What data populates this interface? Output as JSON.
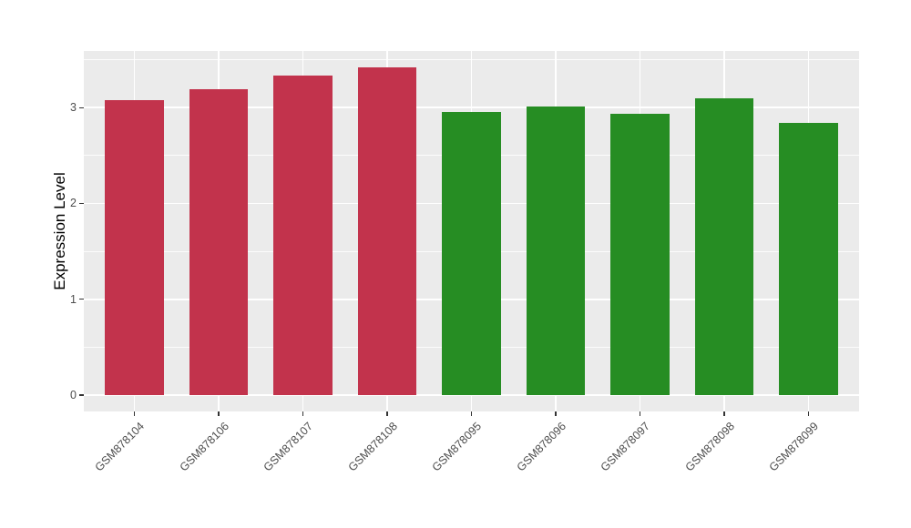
{
  "chart_data": {
    "type": "bar",
    "title": "",
    "xlabel": "",
    "ylabel": "Expression Level",
    "categories": [
      "GSM878104",
      "GSM878106",
      "GSM878107",
      "GSM878108",
      "GSM878095",
      "GSM878096",
      "GSM878097",
      "GSM878098",
      "GSM878099"
    ],
    "values": [
      3.08,
      3.19,
      3.33,
      3.42,
      2.95,
      3.01,
      2.94,
      3.1,
      2.84
    ],
    "bar_colors": [
      "#C2334C",
      "#C2334C",
      "#C2334C",
      "#C2334C",
      "#268D23",
      "#268D23",
      "#268D23",
      "#268D23",
      "#268D23"
    ],
    "yticks": [
      0,
      1,
      2,
      3
    ],
    "ytick_labels": [
      "0",
      "1",
      "2",
      "3"
    ],
    "ylim": [
      -0.171,
      3.591
    ],
    "bar_width_fraction": 0.7,
    "grid": "horizontal major+minor, vertical major at category centers",
    "legend_position": "none",
    "colors": {
      "group_left": "#C2334C",
      "group_right": "#268D23",
      "panel_background": "#EBEBEB",
      "gridline": "#FFFFFF",
      "tick_mark": "#333333",
      "tick_label": "#4D4D4D",
      "axis_title": "#000000"
    }
  }
}
